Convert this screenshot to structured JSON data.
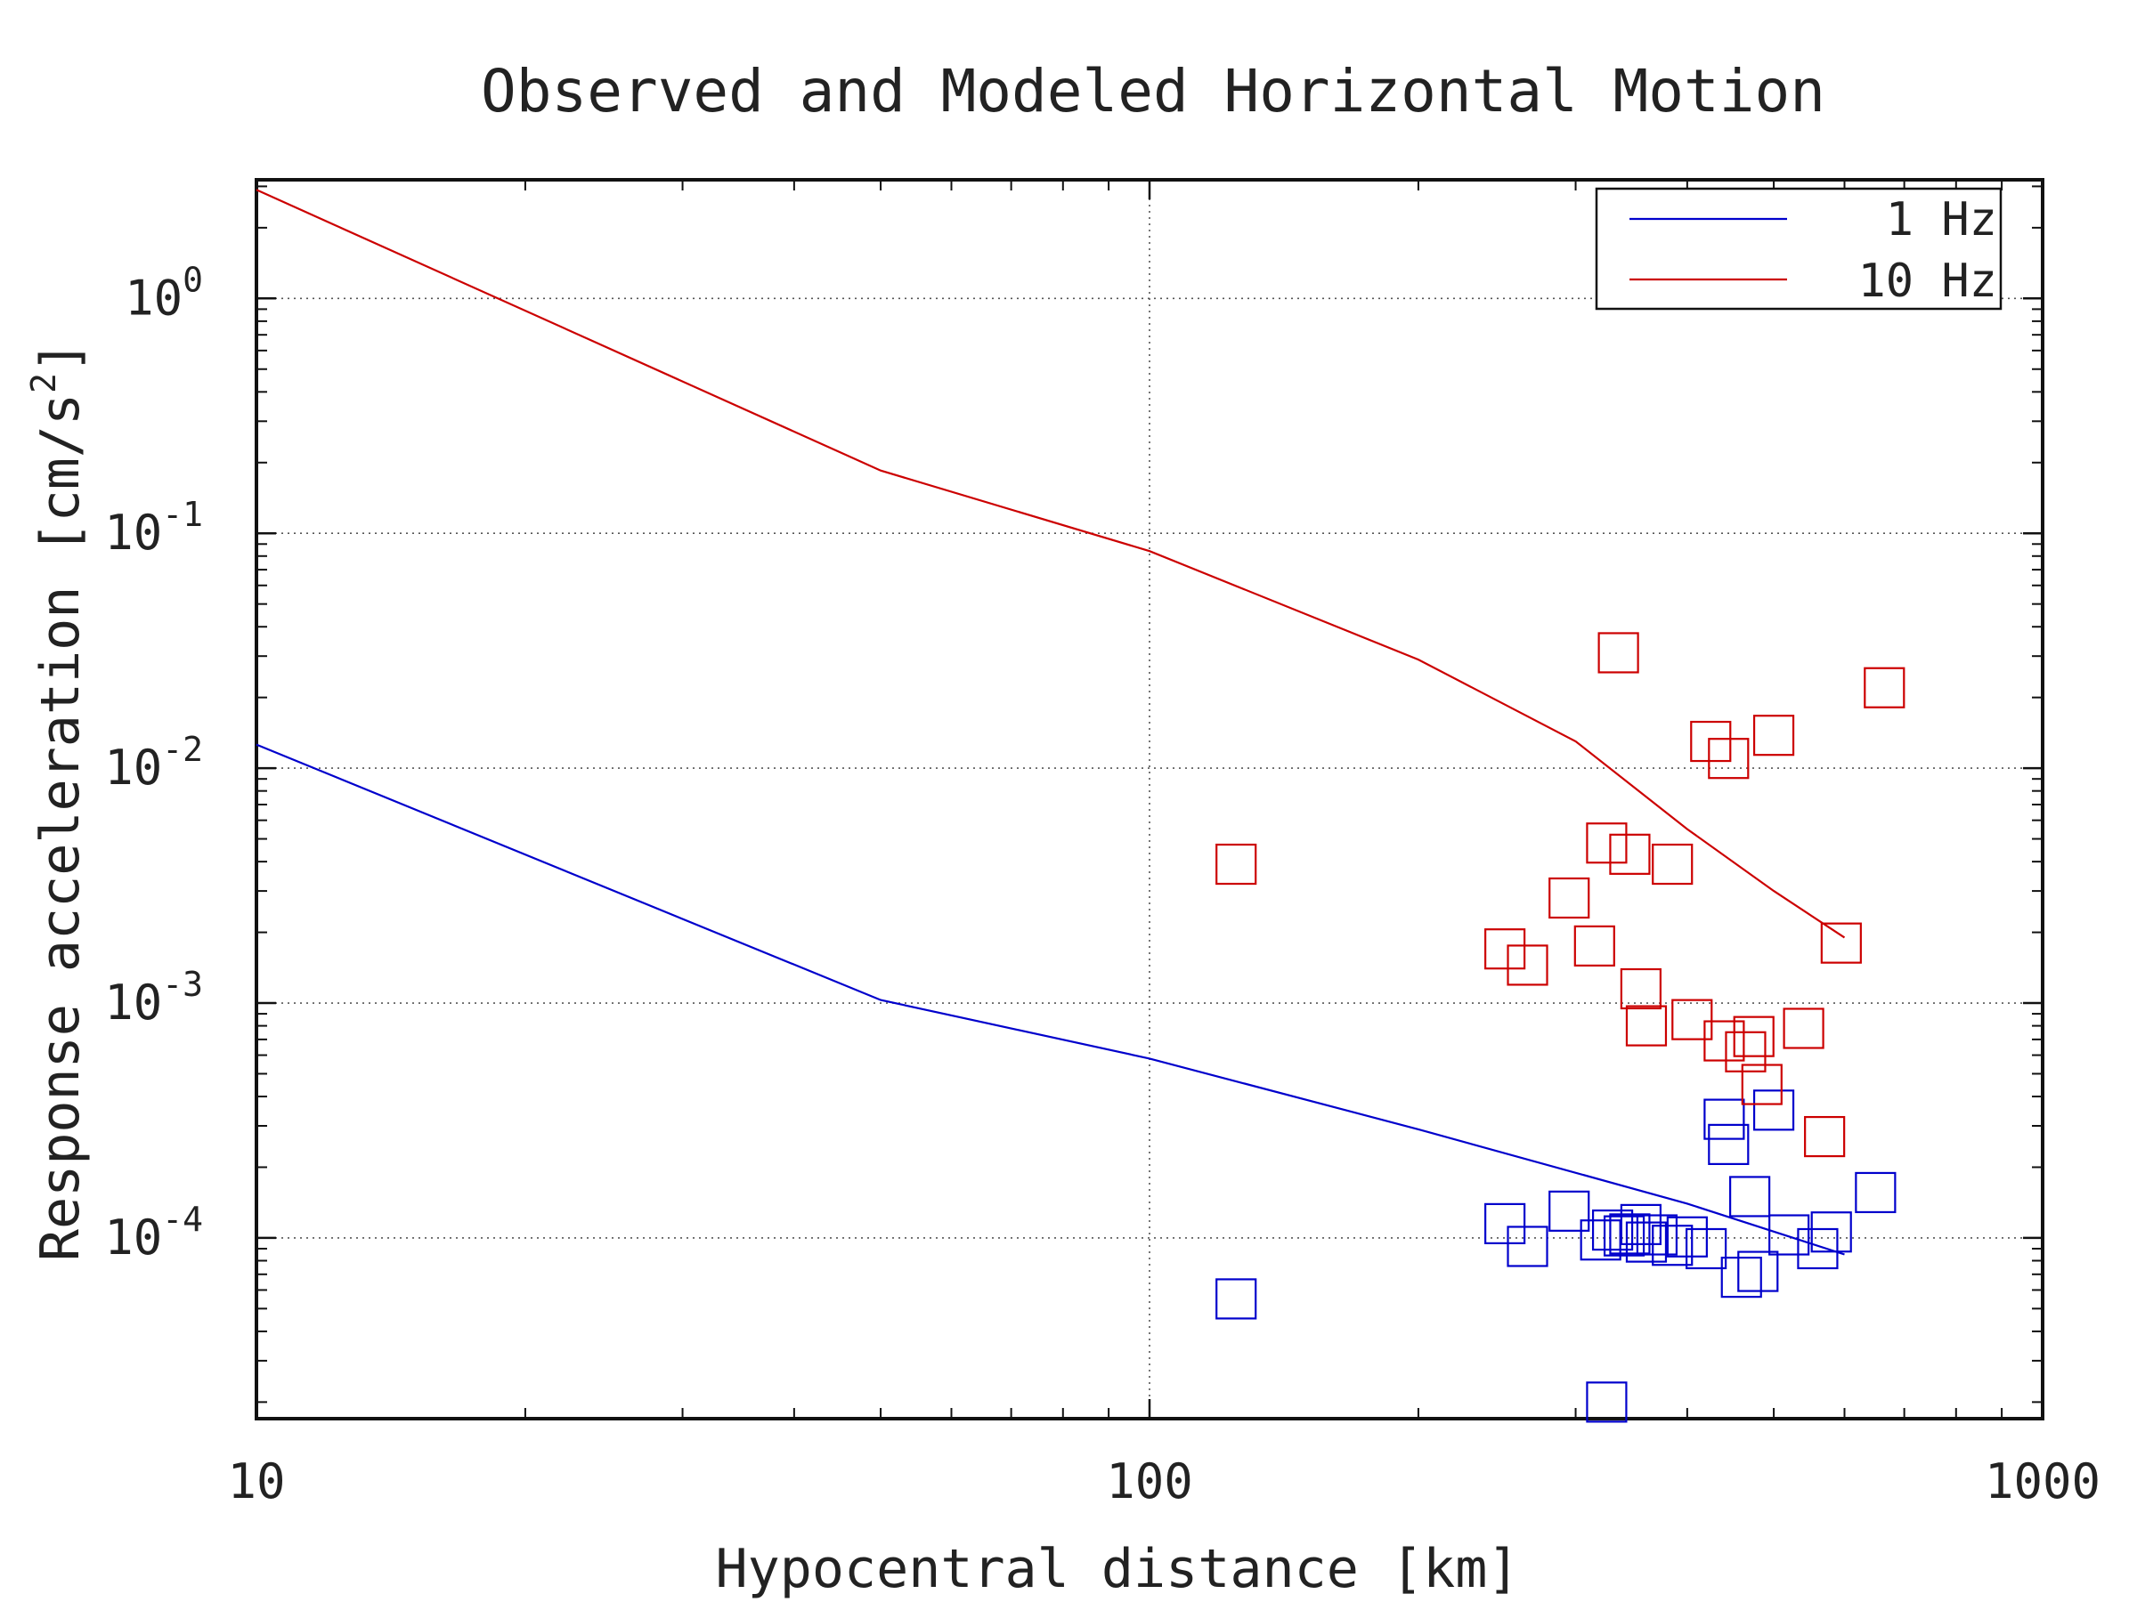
{
  "chart_data": {
    "type": "scatter",
    "title": "Observed and Modeled Horizontal Motion",
    "xlabel": "Hypocentral distance [km]",
    "ylabel": {
      "main": "Response acceleration [cm/s",
      "superscript": "2",
      "close": "]"
    },
    "xscale": "log",
    "yscale": "log",
    "xlim": [
      10,
      1000
    ],
    "ylim": [
      1.7e-05,
      3.2
    ],
    "x_ticks": [
      {
        "value": 10,
        "label": "10"
      },
      {
        "value": 100,
        "label": "100"
      },
      {
        "value": 1000,
        "label": "1000"
      }
    ],
    "y_ticks": [
      {
        "value": 0.0001,
        "base": "10",
        "exp": "-4"
      },
      {
        "value": 0.001,
        "base": "10",
        "exp": "-3"
      },
      {
        "value": 0.01,
        "base": "10",
        "exp": "-2"
      },
      {
        "value": 0.1,
        "base": "10",
        "exp": "-1"
      },
      {
        "value": 1,
        "base": "10",
        "exp": "0"
      }
    ],
    "grid": true,
    "legend_position": "top-right",
    "series": [
      {
        "name": "1 Hz",
        "color": "#0000cc",
        "model_line": [
          [
            10,
            0.0126
          ],
          [
            50,
            0.00103
          ],
          [
            100,
            0.00058
          ],
          [
            200,
            0.00029
          ],
          [
            400,
            0.00014
          ],
          [
            600,
            8.5e-05
          ]
        ],
        "observed": [
          [
            125,
            5.5e-05
          ],
          [
            250,
            0.000115
          ],
          [
            265,
            9.2e-05
          ],
          [
            295,
            0.00013
          ],
          [
            320,
            9.8e-05
          ],
          [
            325,
            2e-05
          ],
          [
            330,
            0.000108
          ],
          [
            340,
            0.000102
          ],
          [
            345,
            0.000104
          ],
          [
            355,
            0.000114
          ],
          [
            360,
            9.6e-05
          ],
          [
            370,
            0.000103
          ],
          [
            385,
            9.3e-05
          ],
          [
            400,
            0.000101
          ],
          [
            420,
            9e-05
          ],
          [
            440,
            0.00032
          ],
          [
            445,
            0.00025
          ],
          [
            460,
            6.8e-05
          ],
          [
            470,
            0.00015
          ],
          [
            480,
            7.2e-05
          ],
          [
            500,
            0.00035
          ],
          [
            520,
            0.000103
          ],
          [
            560,
            9e-05
          ],
          [
            580,
            0.000106
          ],
          [
            650,
            0.000156
          ]
        ]
      },
      {
        "name": "10 Hz",
        "color": "#cc0000",
        "model_line": [
          [
            10,
            2.9
          ],
          [
            50,
            0.185
          ],
          [
            100,
            0.084
          ],
          [
            200,
            0.029
          ],
          [
            300,
            0.013
          ],
          [
            400,
            0.0055
          ],
          [
            500,
            0.003
          ],
          [
            600,
            0.0019
          ]
        ],
        "observed": [
          [
            125,
            0.0039
          ],
          [
            250,
            0.0017
          ],
          [
            265,
            0.00145
          ],
          [
            295,
            0.0028
          ],
          [
            315,
            0.00175
          ],
          [
            325,
            0.0048
          ],
          [
            335,
            0.031
          ],
          [
            345,
            0.0043
          ],
          [
            355,
            0.00115
          ],
          [
            360,
            0.0008
          ],
          [
            385,
            0.0039
          ],
          [
            405,
            0.00085
          ],
          [
            425,
            0.013
          ],
          [
            440,
            0.00069
          ],
          [
            445,
            0.011
          ],
          [
            465,
            0.00062
          ],
          [
            475,
            0.00072
          ],
          [
            485,
            0.00045
          ],
          [
            500,
            0.0138
          ],
          [
            540,
            0.00078
          ],
          [
            570,
            0.00027
          ],
          [
            595,
            0.0018
          ],
          [
            665,
            0.022
          ]
        ]
      }
    ]
  }
}
